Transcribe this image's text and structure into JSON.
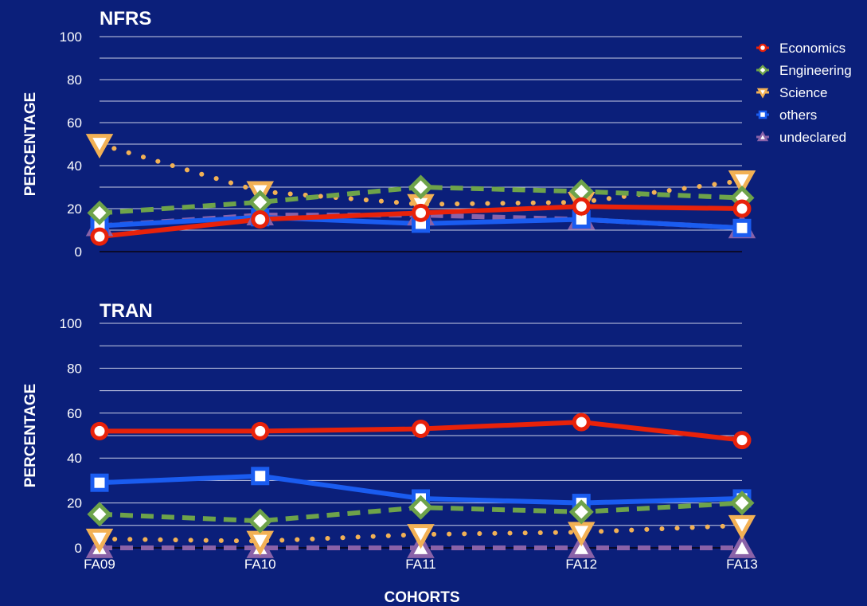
{
  "x_title": "COHORTS",
  "legend": [
    {
      "name": "Economics",
      "color": "#e8220a",
      "marker": "circle"
    },
    {
      "name": "Engineering",
      "color": "#6ea34a",
      "marker": "diamond"
    },
    {
      "name": "Science",
      "color": "#f2b155",
      "marker": "triangle-down"
    },
    {
      "name": "others",
      "color": "#1a5cf0",
      "marker": "square"
    },
    {
      "name": "undeclared",
      "color": "#8a62a8",
      "marker": "triangle-up"
    }
  ],
  "chart_data": [
    {
      "type": "line",
      "title": "NFRS",
      "xlabel": "",
      "ylabel": "PERCENTAGE",
      "categories": [
        "FA09",
        "FA10",
        "FA11",
        "FA12",
        "FA13"
      ],
      "ylim": [
        0,
        100
      ],
      "yticks": [
        0,
        20,
        40,
        60,
        80,
        100
      ],
      "show_x_tick_labels": false,
      "series": [
        {
          "name": "Economics",
          "values": [
            7,
            15,
            18,
            21,
            20
          ],
          "color": "#e8220a",
          "style": "solid",
          "marker": "circle"
        },
        {
          "name": "Engineering",
          "values": [
            18,
            23,
            30,
            28,
            25
          ],
          "color": "#6ea34a",
          "style": "dashed",
          "marker": "diamond"
        },
        {
          "name": "Science",
          "values": [
            50,
            28,
            22,
            23,
            33
          ],
          "color": "#f2b155",
          "style": "dotted",
          "marker": "triangle-down"
        },
        {
          "name": "others",
          "values": [
            12,
            16,
            13,
            15,
            11
          ],
          "color": "#1a5cf0",
          "style": "solid",
          "marker": "square"
        },
        {
          "name": "undeclared",
          "values": [
            12,
            17,
            17,
            15,
            11
          ],
          "color": "#8a62a8",
          "style": "dashed",
          "marker": "triangle-up"
        }
      ]
    },
    {
      "type": "line",
      "title": "TRAN",
      "xlabel": "COHORTS",
      "ylabel": "PERCENTAGE",
      "categories": [
        "FA09",
        "FA10",
        "FA11",
        "FA12",
        "FA13"
      ],
      "ylim": [
        0,
        100
      ],
      "yticks": [
        0,
        20,
        40,
        60,
        80,
        100
      ],
      "show_x_tick_labels": true,
      "series": [
        {
          "name": "Economics",
          "values": [
            52,
            52,
            53,
            56,
            48
          ],
          "color": "#e8220a",
          "style": "solid",
          "marker": "circle"
        },
        {
          "name": "Engineering",
          "values": [
            15,
            12,
            18,
            16,
            20
          ],
          "color": "#6ea34a",
          "style": "dashed",
          "marker": "diamond"
        },
        {
          "name": "Science",
          "values": [
            4,
            3,
            6,
            7,
            10
          ],
          "color": "#f2b155",
          "style": "dotted",
          "marker": "triangle-down"
        },
        {
          "name": "others",
          "values": [
            29,
            32,
            22,
            20,
            22
          ],
          "color": "#1a5cf0",
          "style": "solid",
          "marker": "square"
        },
        {
          "name": "undeclared",
          "values": [
            0,
            0,
            0,
            0,
            0
          ],
          "color": "#8a62a8",
          "style": "dashed",
          "marker": "triangle-up"
        }
      ]
    }
  ]
}
